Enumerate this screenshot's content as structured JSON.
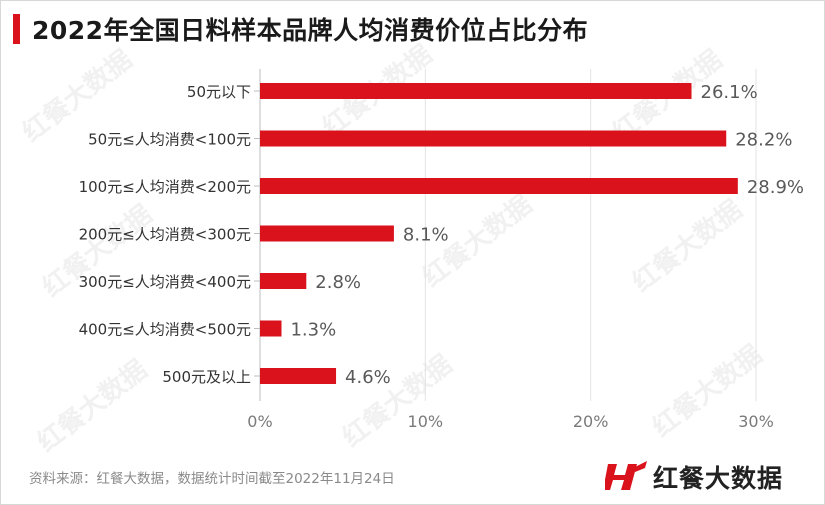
{
  "title": "2022年全国日料样本品牌人均消费价位占比分布",
  "source": "资料来源：红餐大数据，数据统计时间截至2022年11月24日",
  "brand": "红餐大数据",
  "watermark": "红餐大数据",
  "colors": {
    "accent": "#d9121b",
    "grid": "#e3e3e3",
    "label": "#595959"
  },
  "chart_data": {
    "type": "bar",
    "orientation": "horizontal",
    "categories": [
      "50元以下",
      "50元≤人均消费<100元",
      "100元≤人均消费<200元",
      "200元≤人均消费<300元",
      "300元≤人均消费<400元",
      "400元≤人均消费<500元",
      "500元及以上"
    ],
    "values": [
      26.1,
      28.2,
      28.9,
      8.1,
      2.8,
      1.3,
      4.6
    ],
    "value_labels": [
      "26.1%",
      "28.2%",
      "28.9%",
      "8.1%",
      "2.8%",
      "1.3%",
      "4.6%"
    ],
    "xlim": [
      0,
      30
    ],
    "xticks": [
      0,
      10,
      20,
      30
    ],
    "xtick_labels": [
      "0%",
      "10%",
      "20%",
      "30%"
    ],
    "grid": true,
    "bar_color": "#d9121b"
  }
}
